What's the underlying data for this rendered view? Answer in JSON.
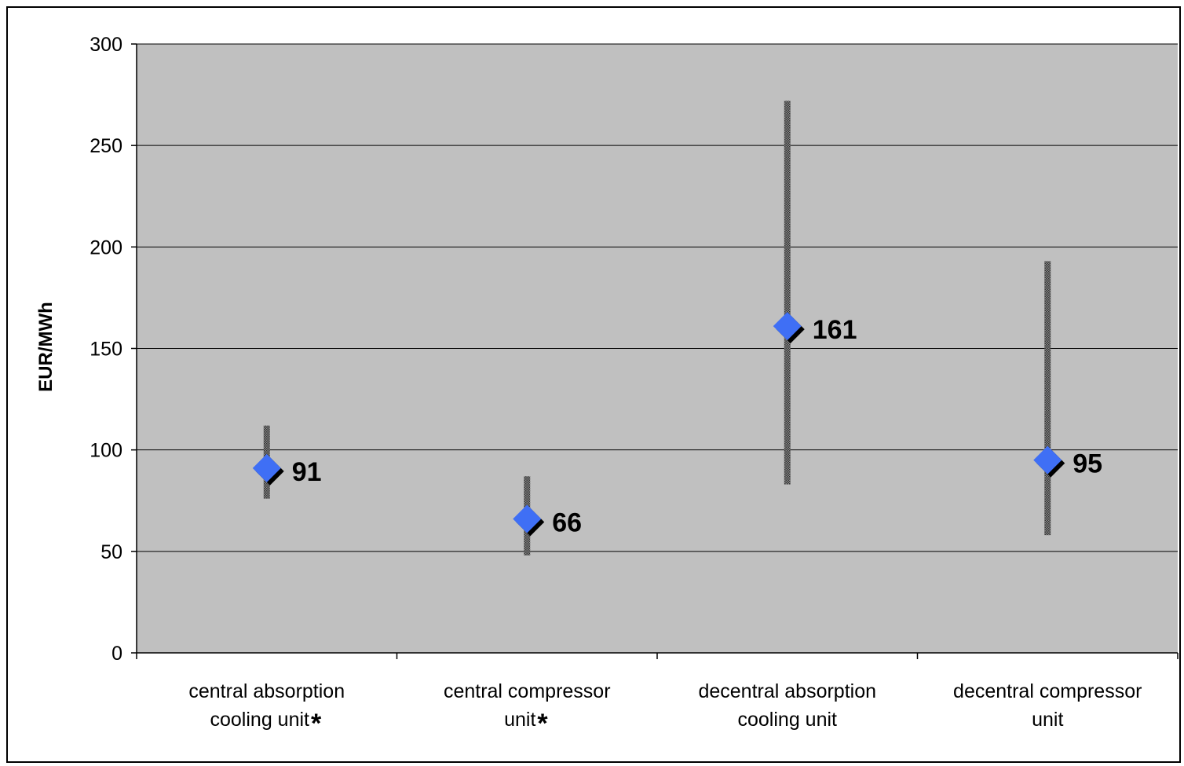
{
  "chart_data": {
    "type": "scatter",
    "title": "",
    "xlabel": "",
    "ylabel": "EUR/MWh",
    "ylim": [
      0,
      300
    ],
    "yticks": [
      0,
      50,
      100,
      150,
      200,
      250,
      300
    ],
    "grid": true,
    "legend": "none",
    "colors": {
      "plot_background": "#c0c0c0",
      "marker": "#3f6ff5",
      "range_bar": "#555555"
    },
    "categories": [
      {
        "lines": [
          "central absorption",
          "cooling unit"
        ],
        "star": "*"
      },
      {
        "lines": [
          "central compressor",
          "unit"
        ],
        "star": "*"
      },
      {
        "lines": [
          "decentral absorption",
          "cooling unit"
        ],
        "star": ""
      },
      {
        "lines": [
          "decentral compressor",
          "unit"
        ],
        "star": ""
      }
    ],
    "values": [
      91,
      66,
      161,
      95
    ],
    "value_labels": [
      "91",
      "66",
      "161",
      "95"
    ],
    "ranges": [
      {
        "low": 76,
        "high": 112
      },
      {
        "low": 48,
        "high": 87
      },
      {
        "low": 83,
        "high": 272
      },
      {
        "low": 58,
        "high": 193
      }
    ]
  }
}
